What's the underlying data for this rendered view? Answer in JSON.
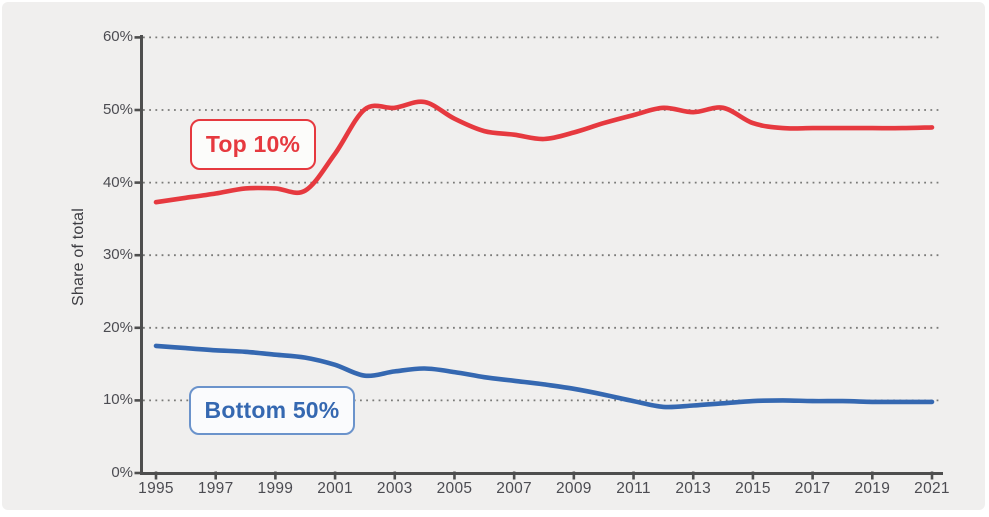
{
  "chart_data": {
    "type": "line",
    "title": "",
    "ylabel": "Share of total",
    "xlabel": "",
    "ylim": [
      0,
      60
    ],
    "y_tick_labels": [
      "0%",
      "10%",
      "20%",
      "30%",
      "40%",
      "50%",
      "60%"
    ],
    "x": [
      1995,
      1996,
      1997,
      1998,
      1999,
      2000,
      2001,
      2002,
      2003,
      2004,
      2005,
      2006,
      2007,
      2008,
      2009,
      2010,
      2011,
      2012,
      2013,
      2014,
      2015,
      2016,
      2017,
      2018,
      2019,
      2020,
      2021
    ],
    "x_tick_labels": [
      "1995",
      "1997",
      "1999",
      "2001",
      "2003",
      "2005",
      "2007",
      "2009",
      "2011",
      "2013",
      "2015",
      "2017",
      "2019",
      "2021"
    ],
    "grid": "horizontal-dotted",
    "legend_position": "inline-annotation-boxes",
    "series": [
      {
        "name": "Top 10%",
        "color": "#e6393f",
        "values": [
          37.3,
          37.9,
          38.5,
          39.2,
          39.2,
          38.9,
          44.0,
          50.1,
          50.3,
          51.1,
          48.8,
          47.1,
          46.6,
          46.0,
          46.9,
          48.2,
          49.3,
          50.3,
          49.7,
          50.3,
          48.2,
          47.5,
          47.5,
          47.5,
          47.5,
          47.5,
          47.6
        ]
      },
      {
        "name": "Bottom 50%",
        "color": "#3568b1",
        "values": [
          17.5,
          17.2,
          16.9,
          16.7,
          16.3,
          15.9,
          14.9,
          13.4,
          14.0,
          14.4,
          13.9,
          13.2,
          12.7,
          12.2,
          11.6,
          10.8,
          9.9,
          9.1,
          9.3,
          9.6,
          9.9,
          10.0,
          9.9,
          9.9,
          9.8,
          9.8,
          9.8
        ]
      }
    ],
    "annotations": [
      {
        "text": "Top 10%",
        "color": "#e6393f"
      },
      {
        "text": "Bottom 50%",
        "color": "#2d6ab2"
      }
    ]
  },
  "style": {
    "panel_background": "#f0efee",
    "grid_color": "#7a7a78",
    "axis_color": "#4e4e4e",
    "tick_label_color": "#4c4c52",
    "axis_title_color": "#3d3d42",
    "red": "#e6393f",
    "blue": "#3568b1"
  }
}
